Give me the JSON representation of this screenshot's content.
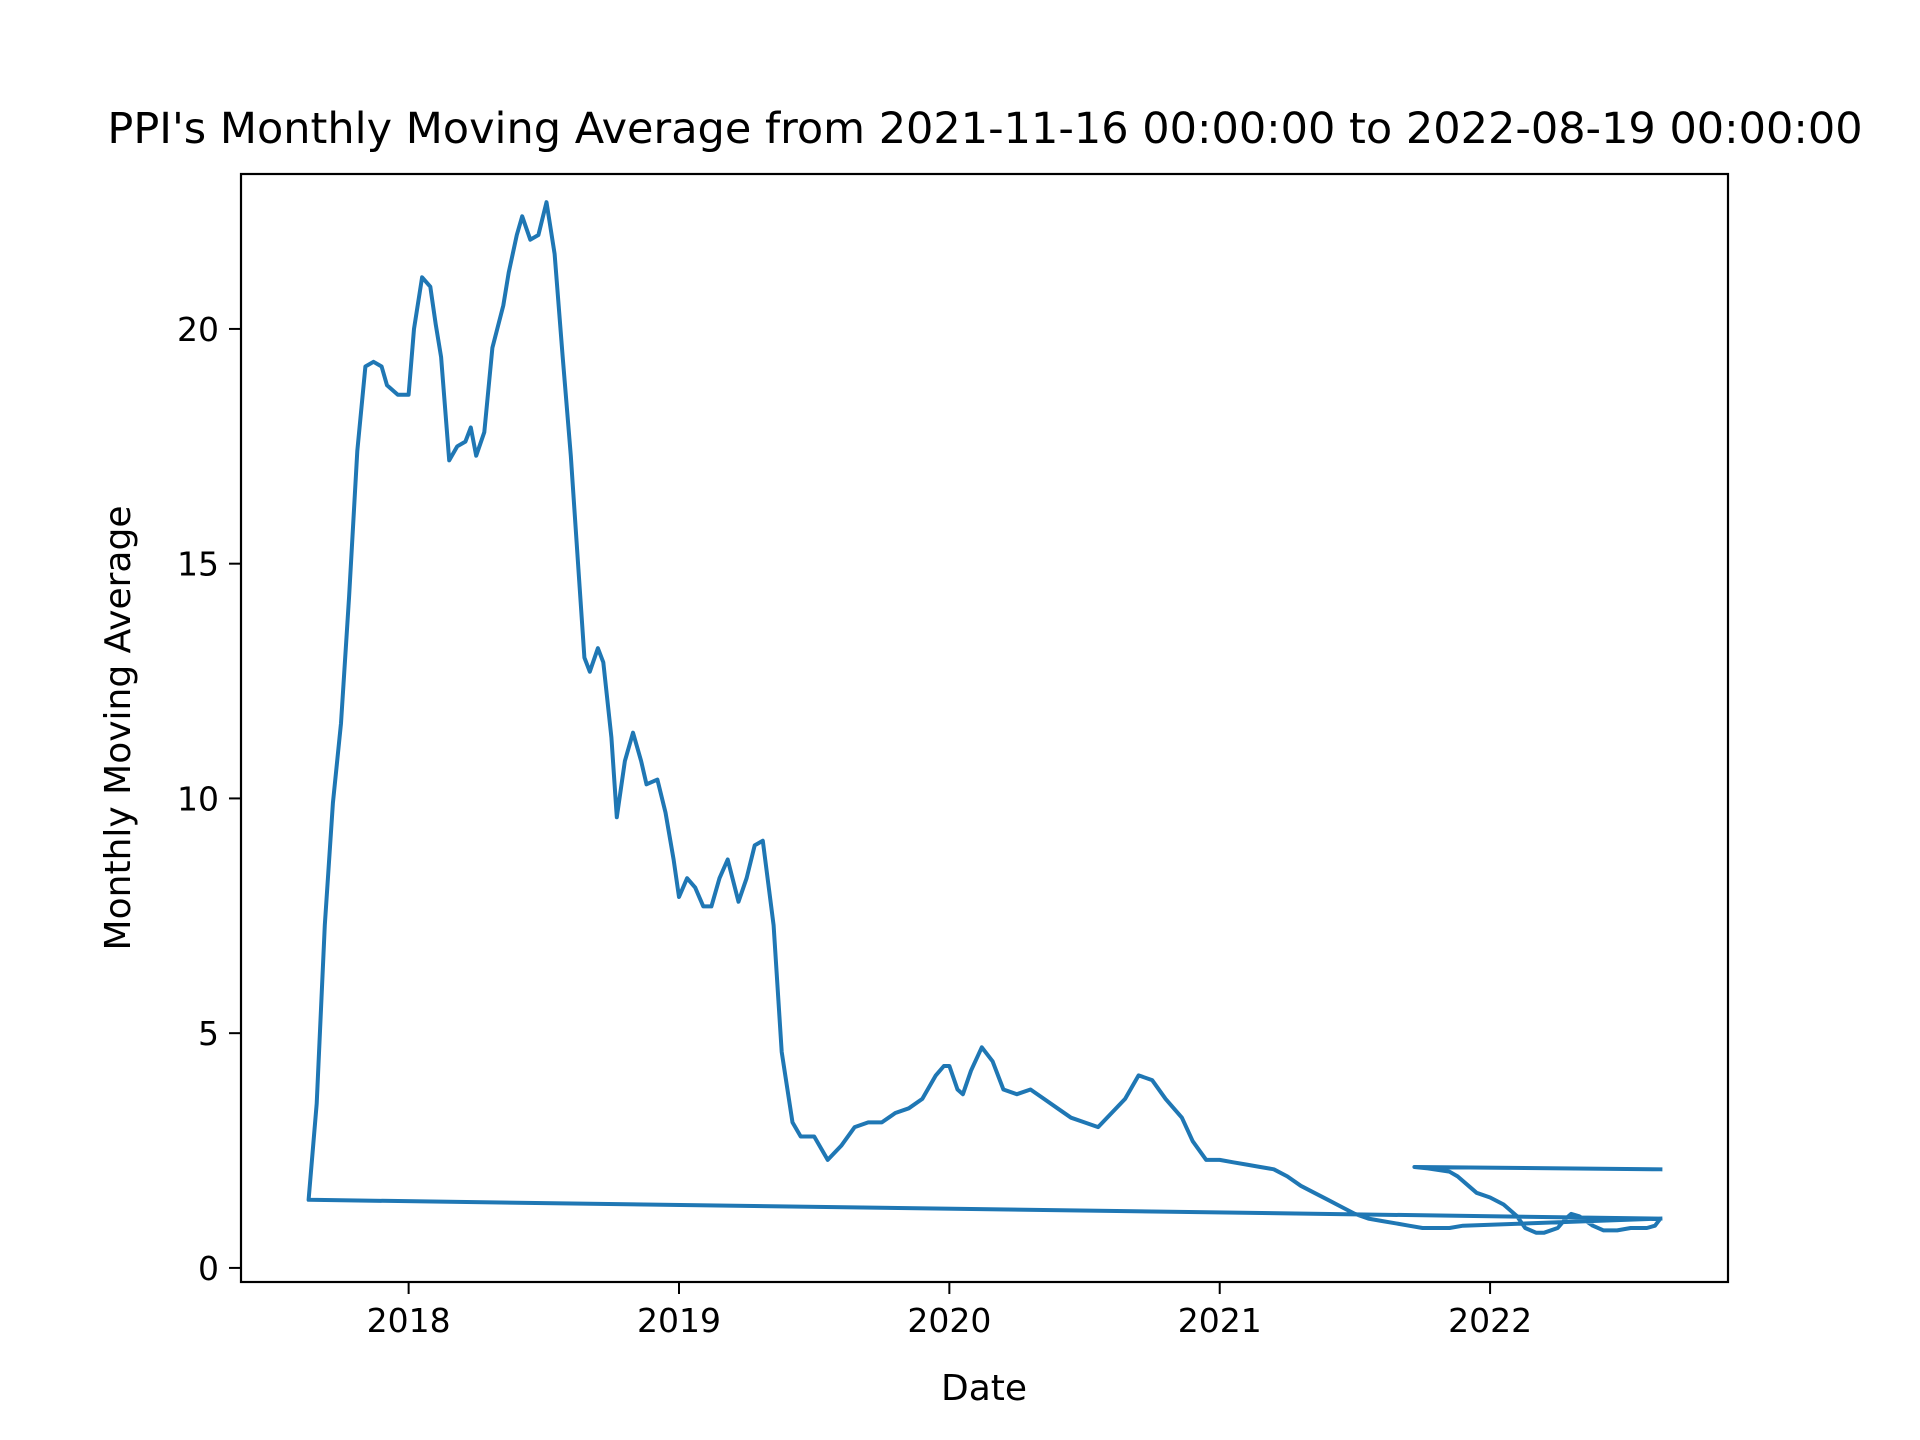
{
  "chart_data": {
    "type": "line",
    "title": "PPI's Monthly Moving Average from 2021-11-16 00:00:00 to 2022-08-19 00:00:00",
    "xlabel": "Date",
    "ylabel": "Monthly Moving Average",
    "xlim": [
      2017.38,
      2022.88
    ],
    "ylim": [
      -0.3,
      23.3
    ],
    "x_ticks": [
      {
        "value": 2018,
        "label": "2018"
      },
      {
        "value": 2019,
        "label": "2019"
      },
      {
        "value": 2020,
        "label": "2020"
      },
      {
        "value": 2021,
        "label": "2021"
      },
      {
        "value": 2022,
        "label": "2022"
      }
    ],
    "y_ticks": [
      {
        "value": 0,
        "label": "0"
      },
      {
        "value": 5,
        "label": "5"
      },
      {
        "value": 10,
        "label": "10"
      },
      {
        "value": 15,
        "label": "15"
      },
      {
        "value": 20,
        "label": "20"
      }
    ],
    "grid": false,
    "color": "#1f77b4",
    "series": [
      {
        "x": [
          2022.63,
          2021.72,
          2021.77,
          2021.85,
          2021.88,
          2021.92,
          2021.95,
          2022.0,
          2022.05,
          2022.1,
          2022.13,
          2022.17,
          2022.2,
          2022.25,
          2022.28,
          2022.3,
          2022.33,
          2022.38,
          2022.42,
          2022.47,
          2022.52,
          2022.58,
          2022.61,
          2022.63,
          2017.63,
          2017.66,
          2017.69,
          2017.72,
          2017.75,
          2017.78,
          2017.81,
          2017.84,
          2017.87,
          2017.9,
          2017.92,
          2017.96,
          2018.0,
          2018.02,
          2018.05,
          2018.08,
          2018.1,
          2018.12,
          2018.15,
          2018.18,
          2018.21,
          2018.23,
          2018.25,
          2018.28,
          2018.31,
          2018.35,
          2018.37,
          2018.4,
          2018.42,
          2018.45,
          2018.48,
          2018.51,
          2018.54,
          2018.57,
          2018.6,
          2018.63,
          2018.65,
          2018.67,
          2018.7,
          2018.72,
          2018.75,
          2018.77,
          2018.8,
          2018.83,
          2018.86,
          2018.88,
          2018.92,
          2018.95,
          2018.98,
          2019.0,
          2019.03,
          2019.06,
          2019.09,
          2019.12,
          2019.15,
          2019.18,
          2019.22,
          2019.25,
          2019.28,
          2019.31,
          2019.35,
          2019.38,
          2019.42,
          2019.45,
          2019.5,
          2019.55,
          2019.6,
          2019.65,
          2019.7,
          2019.75,
          2019.8,
          2019.85,
          2019.9,
          2019.95,
          2019.98,
          2020.0,
          2020.03,
          2020.05,
          2020.08,
          2020.12,
          2020.16,
          2020.2,
          2020.25,
          2020.3,
          2020.35,
          2020.4,
          2020.45,
          2020.5,
          2020.55,
          2020.6,
          2020.65,
          2020.7,
          2020.75,
          2020.8,
          2020.86,
          2020.9,
          2020.95,
          2021.0,
          2021.05,
          2021.1,
          2021.15,
          2021.2,
          2021.25,
          2021.3,
          2021.35,
          2021.4,
          2021.45,
          2021.5,
          2021.55,
          2021.6,
          2021.65,
          2021.7,
          2021.75,
          2021.8,
          2021.85,
          2021.9,
          2022.63
        ],
        "y": [
          2.1,
          2.15,
          2.12,
          2.05,
          1.95,
          1.75,
          1.6,
          1.5,
          1.35,
          1.1,
          0.85,
          0.75,
          0.75,
          0.85,
          1.05,
          1.15,
          1.1,
          0.9,
          0.8,
          0.8,
          0.85,
          0.85,
          0.9,
          1.05,
          1.45,
          3.5,
          7.3,
          9.9,
          11.6,
          14.3,
          17.4,
          19.2,
          19.3,
          19.2,
          18.8,
          18.6,
          18.6,
          20.0,
          21.1,
          20.9,
          20.1,
          19.4,
          17.2,
          17.5,
          17.6,
          17.9,
          17.3,
          17.8,
          19.6,
          20.5,
          21.2,
          22.0,
          22.4,
          21.9,
          22.0,
          22.7,
          21.6,
          19.4,
          17.3,
          14.7,
          13.0,
          12.7,
          13.2,
          12.9,
          11.3,
          9.6,
          10.8,
          11.4,
          10.8,
          10.3,
          10.4,
          9.7,
          8.7,
          7.9,
          8.3,
          8.1,
          7.7,
          7.7,
          8.3,
          8.7,
          7.8,
          8.3,
          9.0,
          9.1,
          7.3,
          4.6,
          3.1,
          2.8,
          2.8,
          2.3,
          2.6,
          3.0,
          3.1,
          3.1,
          3.3,
          3.4,
          3.6,
          4.1,
          4.3,
          4.3,
          3.8,
          3.7,
          4.2,
          4.7,
          4.4,
          3.8,
          3.7,
          3.8,
          3.6,
          3.4,
          3.2,
          3.1,
          3.0,
          3.3,
          3.6,
          4.1,
          4.0,
          3.6,
          3.2,
          2.7,
          2.3,
          2.3,
          2.25,
          2.2,
          2.15,
          2.1,
          1.95,
          1.75,
          1.6,
          1.45,
          1.3,
          1.15,
          1.05,
          1.0,
          0.95,
          0.9,
          0.85,
          0.85,
          0.85,
          0.9,
          1.05
        ]
      }
    ]
  }
}
